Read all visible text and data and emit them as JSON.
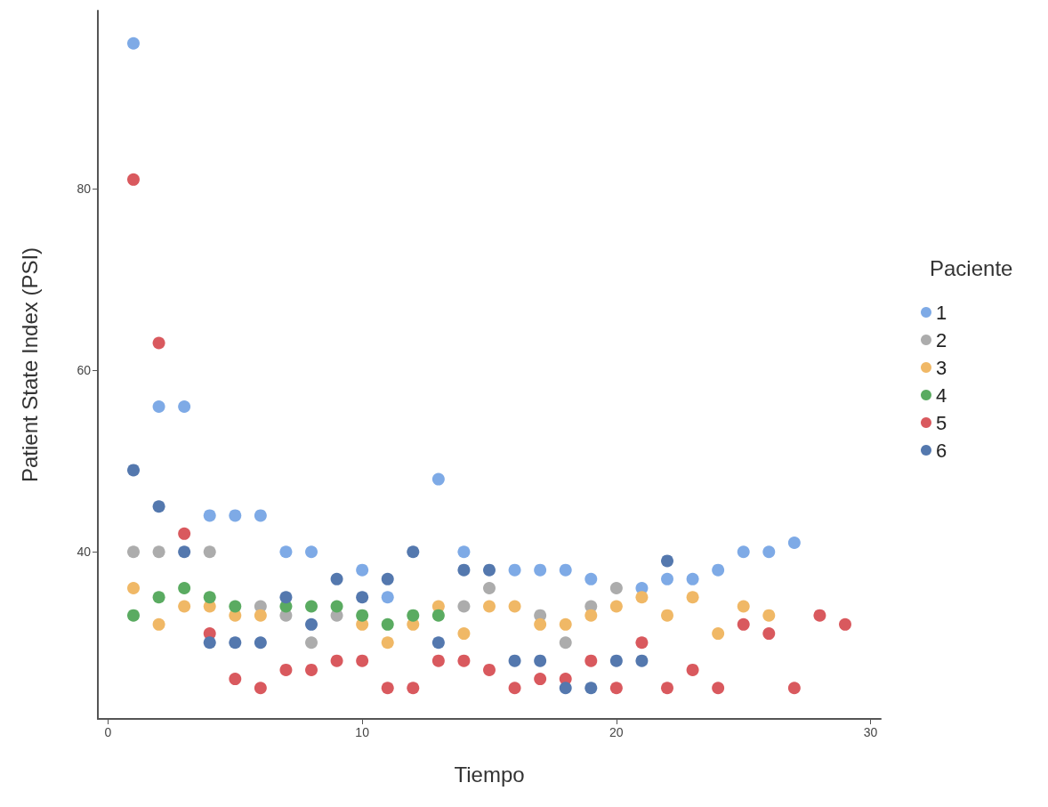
{
  "chart_data": {
    "type": "scatter",
    "xlabel": "Tiempo",
    "ylabel": "Patient State Index (PSI)",
    "legend_title": "Paciente",
    "legend": "right",
    "grid": false,
    "marker": "circle",
    "xlim": [
      -0.4,
      30.4
    ],
    "xticks": [
      0,
      10,
      20,
      30
    ],
    "ylim": [
      21.6,
      99.6
    ],
    "yticks": [
      40,
      60,
      80
    ],
    "series": [
      {
        "name": "1",
        "color": "#7eaae6",
        "x": [
          1,
          2,
          3,
          4,
          5,
          6,
          7,
          8,
          10,
          11,
          13,
          14,
          16,
          17,
          18,
          19,
          21,
          22,
          23,
          24,
          25,
          26,
          27
        ],
        "values": [
          96,
          56,
          56,
          44,
          44,
          44,
          40,
          40,
          38,
          35,
          48,
          40,
          38,
          38,
          38,
          37,
          36,
          37,
          37,
          38,
          40,
          40,
          41
        ]
      },
      {
        "name": "2",
        "color": "#acacac",
        "x": [
          1,
          2,
          4,
          6,
          7,
          8,
          9,
          14,
          15,
          17,
          18,
          19,
          20
        ],
        "values": [
          40,
          40,
          40,
          34,
          33,
          30,
          33,
          34,
          36,
          33,
          30,
          34,
          36
        ]
      },
      {
        "name": "3",
        "color": "#f0b866",
        "x": [
          1,
          2,
          3,
          4,
          5,
          6,
          10,
          11,
          12,
          13,
          14,
          15,
          16,
          17,
          18,
          19,
          20,
          21,
          22,
          23,
          24,
          25,
          26
        ],
        "values": [
          36,
          32,
          34,
          34,
          33,
          33,
          32,
          30,
          32,
          34,
          31,
          34,
          34,
          32,
          32,
          33,
          34,
          35,
          33,
          35,
          31,
          34,
          33
        ]
      },
      {
        "name": "4",
        "color": "#5aab61",
        "x": [
          1,
          2,
          3,
          4,
          5,
          7,
          8,
          9,
          10,
          11,
          12,
          13
        ],
        "values": [
          33,
          35,
          36,
          35,
          34,
          34,
          34,
          34,
          33,
          32,
          33,
          33
        ]
      },
      {
        "name": "5",
        "color": "#d9595e",
        "x": [
          1,
          2,
          3,
          4,
          5,
          6,
          7,
          8,
          9,
          10,
          11,
          12,
          13,
          14,
          15,
          16,
          17,
          18,
          19,
          20,
          21,
          22,
          23,
          24,
          25,
          26,
          27,
          28,
          29
        ],
        "values": [
          81,
          63,
          42,
          31,
          26,
          25,
          27,
          27,
          28,
          28,
          25,
          25,
          28,
          28,
          27,
          25,
          26,
          26,
          28,
          25,
          30,
          25,
          27,
          25,
          32,
          31,
          25,
          33,
          32
        ]
      },
      {
        "name": "6",
        "color": "#5478ae",
        "x": [
          1,
          2,
          3,
          4,
          5,
          6,
          7,
          8,
          9,
          10,
          11,
          12,
          13,
          14,
          15,
          16,
          17,
          18,
          19,
          20,
          21,
          22
        ],
        "values": [
          49,
          45,
          40,
          30,
          30,
          30,
          35,
          32,
          37,
          35,
          37,
          40,
          30,
          38,
          38,
          28,
          28,
          25,
          25,
          28,
          28,
          39
        ]
      }
    ]
  }
}
